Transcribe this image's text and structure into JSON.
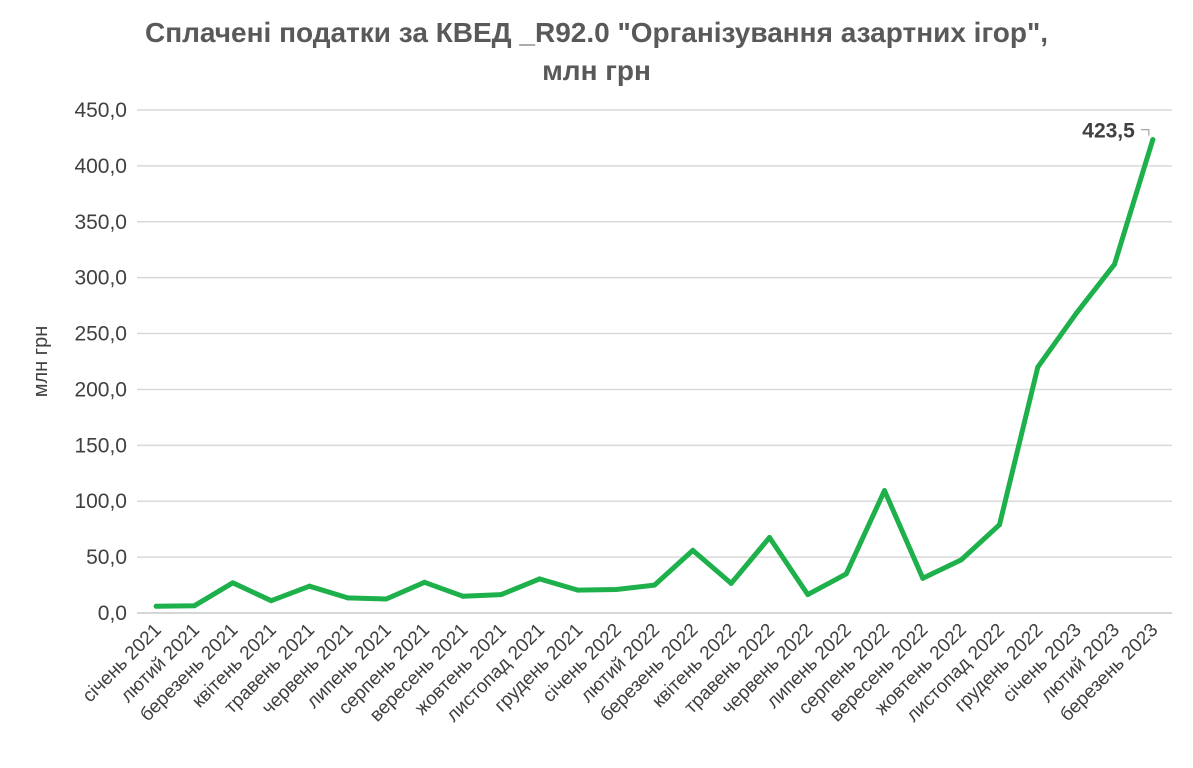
{
  "chart_data": {
    "type": "line",
    "title_line1": "Сплачені податки за КВЕД _R92.0 \"Організування азартних ігор\",",
    "title_line2": "млн грн",
    "ylabel": "млн грн",
    "xlabel": "",
    "ylim": [
      0,
      450
    ],
    "yticks": [
      "0,0",
      "50,0",
      "100,0",
      "150,0",
      "200,0",
      "250,0",
      "300,0",
      "350,0",
      "400,0",
      "450,0"
    ],
    "grid": true,
    "legend": "none",
    "line_color": "#1DB04B",
    "categories": [
      "січень 2021",
      "лютий 2021",
      "березень 2021",
      "квітень 2021",
      "травень 2021",
      "червень 2021",
      "липень 2021",
      "серпень 2021",
      "вересень 2021",
      "жовтень 2021",
      "листопад 2021",
      "грудень 2021",
      "січень 2022",
      "лютий 2022",
      "березень 2022",
      "квітень 2022",
      "травень 2022",
      "червень 2022",
      "липень 2022",
      "серпень 2022",
      "вересень 2022",
      "жовтень 2022",
      "листопад 2022",
      "грудень 2022",
      "січень 2023",
      "лютий 2023",
      "березень 2023"
    ],
    "values": [
      6,
      6.5,
      27,
      11,
      24,
      13.5,
      12.5,
      27.5,
      15,
      16.5,
      30.5,
      20.5,
      21,
      25,
      56,
      26.5,
      67.5,
      16.5,
      35,
      109.5,
      31,
      47.5,
      79,
      220,
      268,
      312,
      423.5
    ],
    "data_labels": [
      {
        "index": 26,
        "text": "423,5"
      }
    ]
  }
}
